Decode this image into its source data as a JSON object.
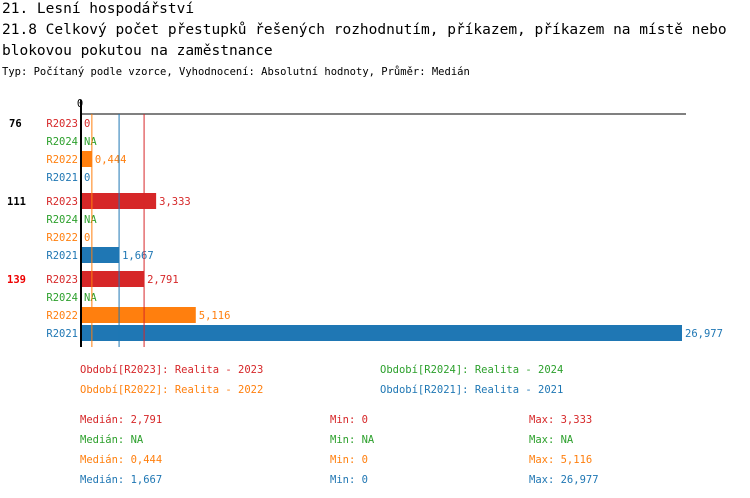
{
  "title": "21. Lesní hospodářství",
  "subtitle": "21.8 Celkový počet přestupků řešených rozhodnutím, příkazem, příkazem na místě nebo blokovou pokutou na zaměstnance",
  "meta": "Typ: Počítaný podle vzorce, Vyhodnocení: Absolutní hodnoty, Průměr: Medián",
  "chart_data": {
    "type": "bar",
    "orientation": "horizontal",
    "xlim": [
      0,
      26.977
    ],
    "x_tick_labels": [
      "0"
    ],
    "colors": {
      "R2023": "#d62728",
      "R2024": "#2ca02c",
      "R2022": "#ff7f0e",
      "R2021": "#1f77b4"
    },
    "series_order": [
      "R2023",
      "R2024",
      "R2022",
      "R2021"
    ],
    "groups": [
      {
        "label": "76",
        "highlight": false,
        "values": [
          {
            "s": "R2023",
            "v": 0,
            "t": "0"
          },
          {
            "s": "R2024",
            "v": null,
            "t": "NA"
          },
          {
            "s": "R2022",
            "v": 0.444,
            "t": "0,444"
          },
          {
            "s": "R2021",
            "v": 0,
            "t": "0"
          }
        ]
      },
      {
        "label": "111",
        "highlight": false,
        "values": [
          {
            "s": "R2023",
            "v": 3.333,
            "t": "3,333"
          },
          {
            "s": "R2024",
            "v": null,
            "t": "NA"
          },
          {
            "s": "R2022",
            "v": 0,
            "t": "0"
          },
          {
            "s": "R2021",
            "v": 1.667,
            "t": "1,667"
          }
        ]
      },
      {
        "label": "139",
        "highlight": true,
        "values": [
          {
            "s": "R2023",
            "v": 2.791,
            "t": "2,791"
          },
          {
            "s": "R2024",
            "v": null,
            "t": "NA"
          },
          {
            "s": "R2022",
            "v": 5.116,
            "t": "5,116"
          },
          {
            "s": "R2021",
            "v": 26.977,
            "t": "26,977"
          }
        ]
      }
    ],
    "medians": {
      "R2023": 2.791,
      "R2022": 0.444,
      "R2021": 1.667
    },
    "legend": [
      {
        "s": "R2023",
        "text": "Období[R2023]: Realita - 2023"
      },
      {
        "s": "R2024",
        "text": "Období[R2024]: Realita - 2024"
      },
      {
        "s": "R2022",
        "text": "Období[R2022]: Realita - 2022"
      },
      {
        "s": "R2021",
        "text": "Období[R2021]: Realita - 2021"
      }
    ],
    "stats": [
      {
        "s": "R2023",
        "median": "Medián: 2,791",
        "min": "Min: 0",
        "max": "Max: 3,333"
      },
      {
        "s": "R2024",
        "median": "Medián: NA",
        "min": "Min: NA",
        "max": "Max: NA"
      },
      {
        "s": "R2022",
        "median": "Medián: 0,444",
        "min": "Min: 0",
        "max": "Max: 5,116"
      },
      {
        "s": "R2021",
        "median": "Medián: 1,667",
        "min": "Min: 0",
        "max": "Max: 26,977"
      }
    ]
  }
}
